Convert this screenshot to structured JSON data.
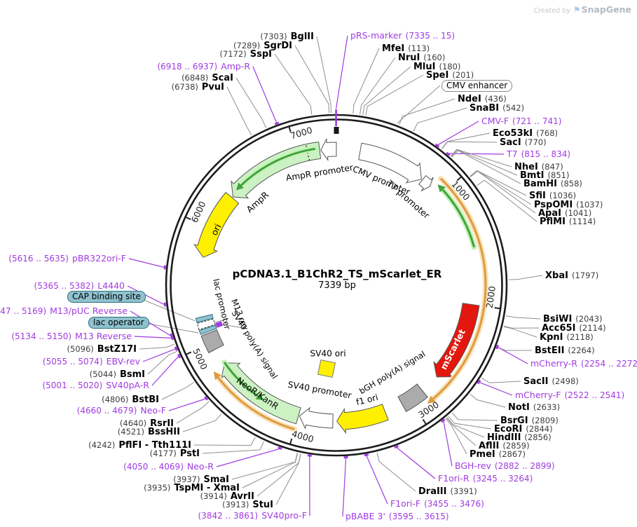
{
  "watermark": {
    "prefix": "Created by",
    "brand": "SnapGene"
  },
  "plasmid": {
    "name": "pCDNA3.1_B1ChR2_TS_mScarlet_ER",
    "size": "7339 bp"
  },
  "ticks": [
    "1000",
    "2000",
    "3000",
    "4000",
    "5000",
    "6000",
    "7000"
  ],
  "colors": {
    "ring": "#1c1c1c",
    "leader": "#8f8f8f",
    "primer": "#A03BE0",
    "teal_fill": "#8FC2CF",
    "teal_stroke": "#31707F",
    "feature_stroke": "#565656",
    "light_green": "#CCF2C4",
    "yellow": "#FFF000",
    "red": "#E3170D",
    "gray_box": "#ABABAB",
    "white": "#FFFFFF",
    "orf_orange": "#E09A3C",
    "orf_orange_halo": "#F7E3BC",
    "orf_green": "#3FA33F",
    "orf_green_halo": "#C6F2B5"
  },
  "boxed_labels": [
    {
      "label": "CMV enhancer"
    },
    {
      "label": "CAP binding site"
    },
    {
      "label": "lac operator"
    }
  ],
  "features": [
    "AmpR promoter",
    "AmpR",
    "ori",
    "lac promoter",
    "M13 rev",
    "SV40 poly(A) signal",
    "NeoR/KanR",
    "SV40 promoter",
    "SV40 ori",
    "f1 ori",
    "bGH poly(A) signal",
    "mScarlet",
    "CMV promoter",
    "T7 promoter"
  ],
  "sites": [
    {
      "name": "BglII",
      "pos": "(7303)",
      "kind": "enzyme"
    },
    {
      "name": "SgrDI",
      "pos": "(7289)",
      "kind": "enzyme"
    },
    {
      "name": "SspI",
      "pos": "(7172)",
      "kind": "enzyme"
    },
    {
      "name": "Amp-R",
      "pos": "(6918 .. 6937)",
      "kind": "primer"
    },
    {
      "name": "ScaI",
      "pos": "(6848)",
      "kind": "enzyme"
    },
    {
      "name": "PvuI",
      "pos": "(6738)",
      "kind": "enzyme"
    },
    {
      "name": "pRS-marker",
      "pos": "(7335 .. 15)",
      "kind": "primer"
    },
    {
      "name": "MfeI",
      "pos": "(113)",
      "kind": "enzyme"
    },
    {
      "name": "NruI",
      "pos": "(160)",
      "kind": "enzyme"
    },
    {
      "name": "MluI",
      "pos": "(180)",
      "kind": "enzyme"
    },
    {
      "name": "SpeI",
      "pos": "(201)",
      "kind": "enzyme"
    },
    {
      "name": "NdeI",
      "pos": "(436)",
      "kind": "enzyme"
    },
    {
      "name": "SnaBI",
      "pos": "(542)",
      "kind": "enzyme"
    },
    {
      "name": "CMV-F",
      "pos": "(721 .. 741)",
      "kind": "primer"
    },
    {
      "name": "Eco53kI",
      "pos": "(768)",
      "kind": "enzyme"
    },
    {
      "name": "SacI",
      "pos": "(770)",
      "kind": "enzyme"
    },
    {
      "name": "T7",
      "pos": "(815 .. 834)",
      "kind": "primer"
    },
    {
      "name": "NheI",
      "pos": "(847)",
      "kind": "enzyme"
    },
    {
      "name": "BmtI",
      "pos": "(851)",
      "kind": "enzyme"
    },
    {
      "name": "BamHI",
      "pos": "(858)",
      "kind": "enzyme"
    },
    {
      "name": "SfiI",
      "pos": "(1036)",
      "kind": "enzyme"
    },
    {
      "name": "PspOMI",
      "pos": "(1037)",
      "kind": "enzyme"
    },
    {
      "name": "ApaI",
      "pos": "(1041)",
      "kind": "enzyme"
    },
    {
      "name": "PflMI",
      "pos": "(1114)",
      "kind": "enzyme"
    },
    {
      "name": "XbaI",
      "pos": "(1797)",
      "kind": "enzyme"
    },
    {
      "name": "BsiWI",
      "pos": "(2043)",
      "kind": "enzyme"
    },
    {
      "name": "Acc65I",
      "pos": "(2114)",
      "kind": "enzyme"
    },
    {
      "name": "KpnI",
      "pos": "(2118)",
      "kind": "enzyme"
    },
    {
      "name": "BstEII",
      "pos": "(2264)",
      "kind": "enzyme"
    },
    {
      "name": "mCherry-R",
      "pos": "(2254 .. 2272)",
      "kind": "primer"
    },
    {
      "name": "SacII",
      "pos": "(2498)",
      "kind": "enzyme"
    },
    {
      "name": "mCherry-F",
      "pos": "(2522 .. 2541)",
      "kind": "primer"
    },
    {
      "name": "NotI",
      "pos": "(2633)",
      "kind": "enzyme"
    },
    {
      "name": "BsrGI",
      "pos": "(2809)",
      "kind": "enzyme"
    },
    {
      "name": "EcoRI",
      "pos": "(2844)",
      "kind": "enzyme"
    },
    {
      "name": "HindIII",
      "pos": "(2856)",
      "kind": "enzyme"
    },
    {
      "name": "AflII",
      "pos": "(2859)",
      "kind": "enzyme"
    },
    {
      "name": "PmeI",
      "pos": "(2867)",
      "kind": "enzyme"
    },
    {
      "name": "BGH-rev",
      "pos": "(2882 .. 2899)",
      "kind": "primer"
    },
    {
      "name": "F1ori-R",
      "pos": "(3245 .. 3264)",
      "kind": "primer"
    },
    {
      "name": "DraIII",
      "pos": "(3391)",
      "kind": "enzyme"
    },
    {
      "name": "F1ori-F",
      "pos": "(3455 .. 3476)",
      "kind": "primer"
    },
    {
      "name": "pBABE 3'",
      "pos": "(3595 .. 3615)",
      "kind": "primer"
    },
    {
      "name": "SV40pro-F",
      "pos": "(3842 .. 3861)",
      "kind": "primer"
    },
    {
      "name": "StuI",
      "pos": "(3913)",
      "kind": "enzyme"
    },
    {
      "name": "AvrII",
      "pos": "(3914)",
      "kind": "enzyme"
    },
    {
      "name": "TspMI - XmaI",
      "pos": "(3935)",
      "kind": "enzyme"
    },
    {
      "name": "SmaI",
      "pos": "(3937)",
      "kind": "enzyme"
    },
    {
      "name": "Neo-R",
      "pos": "(4050 .. 4069)",
      "kind": "primer"
    },
    {
      "name": "PstI",
      "pos": "(4177)",
      "kind": "enzyme"
    },
    {
      "name": "PflFI - Tth111I",
      "pos": "(4242)",
      "kind": "enzyme"
    },
    {
      "name": "BssHII",
      "pos": "(4521)",
      "kind": "enzyme"
    },
    {
      "name": "RsrII",
      "pos": "(4640)",
      "kind": "enzyme"
    },
    {
      "name": "Neo-F",
      "pos": "(4660 .. 4679)",
      "kind": "primer"
    },
    {
      "name": "BstBI",
      "pos": "(4806)",
      "kind": "enzyme"
    },
    {
      "name": "SV40pA-R",
      "pos": "(5001 .. 5020)",
      "kind": "primer"
    },
    {
      "name": "BsmI",
      "pos": "(5044)",
      "kind": "enzyme"
    },
    {
      "name": "EBV-rev",
      "pos": "(5055 .. 5074)",
      "kind": "primer"
    },
    {
      "name": "BstZ17I",
      "pos": "(5096)",
      "kind": "enzyme"
    },
    {
      "name": "M13 Reverse",
      "pos": "(5134 .. 5150)",
      "kind": "primer"
    },
    {
      "name": "M13/pUC Reverse",
      "pos": "(5147 .. 5169)",
      "kind": "primer"
    },
    {
      "name": "L4440",
      "pos": "(5365 .. 5382)",
      "kind": "primer"
    },
    {
      "name": "pBR322ori-F",
      "pos": "(5616 .. 5635)",
      "kind": "primer"
    }
  ]
}
